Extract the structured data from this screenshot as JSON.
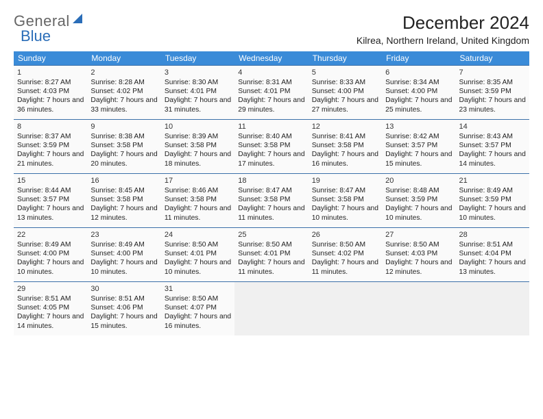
{
  "logo": {
    "word1": "General",
    "word2": "Blue"
  },
  "title": {
    "month": "December 2024",
    "location": "Kilrea, Northern Ireland, United Kingdom"
  },
  "colors": {
    "header_bg": "#3a8bd8",
    "header_text": "#ffffff",
    "week_border": "#3a6fa8",
    "day_bg": "#fafafa",
    "empty_bg": "#f0f0f0",
    "text": "#222222",
    "logo_gray": "#666666",
    "logo_blue": "#2a6db8"
  },
  "dow": [
    "Sunday",
    "Monday",
    "Tuesday",
    "Wednesday",
    "Thursday",
    "Friday",
    "Saturday"
  ],
  "weeks": [
    [
      {
        "n": "1",
        "sr": "8:27 AM",
        "ss": "4:03 PM",
        "dl": "7 hours and 36 minutes."
      },
      {
        "n": "2",
        "sr": "8:28 AM",
        "ss": "4:02 PM",
        "dl": "7 hours and 33 minutes."
      },
      {
        "n": "3",
        "sr": "8:30 AM",
        "ss": "4:01 PM",
        "dl": "7 hours and 31 minutes."
      },
      {
        "n": "4",
        "sr": "8:31 AM",
        "ss": "4:01 PM",
        "dl": "7 hours and 29 minutes."
      },
      {
        "n": "5",
        "sr": "8:33 AM",
        "ss": "4:00 PM",
        "dl": "7 hours and 27 minutes."
      },
      {
        "n": "6",
        "sr": "8:34 AM",
        "ss": "4:00 PM",
        "dl": "7 hours and 25 minutes."
      },
      {
        "n": "7",
        "sr": "8:35 AM",
        "ss": "3:59 PM",
        "dl": "7 hours and 23 minutes."
      }
    ],
    [
      {
        "n": "8",
        "sr": "8:37 AM",
        "ss": "3:59 PM",
        "dl": "7 hours and 21 minutes."
      },
      {
        "n": "9",
        "sr": "8:38 AM",
        "ss": "3:58 PM",
        "dl": "7 hours and 20 minutes."
      },
      {
        "n": "10",
        "sr": "8:39 AM",
        "ss": "3:58 PM",
        "dl": "7 hours and 18 minutes."
      },
      {
        "n": "11",
        "sr": "8:40 AM",
        "ss": "3:58 PM",
        "dl": "7 hours and 17 minutes."
      },
      {
        "n": "12",
        "sr": "8:41 AM",
        "ss": "3:58 PM",
        "dl": "7 hours and 16 minutes."
      },
      {
        "n": "13",
        "sr": "8:42 AM",
        "ss": "3:57 PM",
        "dl": "7 hours and 15 minutes."
      },
      {
        "n": "14",
        "sr": "8:43 AM",
        "ss": "3:57 PM",
        "dl": "7 hours and 14 minutes."
      }
    ],
    [
      {
        "n": "15",
        "sr": "8:44 AM",
        "ss": "3:57 PM",
        "dl": "7 hours and 13 minutes."
      },
      {
        "n": "16",
        "sr": "8:45 AM",
        "ss": "3:58 PM",
        "dl": "7 hours and 12 minutes."
      },
      {
        "n": "17",
        "sr": "8:46 AM",
        "ss": "3:58 PM",
        "dl": "7 hours and 11 minutes."
      },
      {
        "n": "18",
        "sr": "8:47 AM",
        "ss": "3:58 PM",
        "dl": "7 hours and 11 minutes."
      },
      {
        "n": "19",
        "sr": "8:47 AM",
        "ss": "3:58 PM",
        "dl": "7 hours and 10 minutes."
      },
      {
        "n": "20",
        "sr": "8:48 AM",
        "ss": "3:59 PM",
        "dl": "7 hours and 10 minutes."
      },
      {
        "n": "21",
        "sr": "8:49 AM",
        "ss": "3:59 PM",
        "dl": "7 hours and 10 minutes."
      }
    ],
    [
      {
        "n": "22",
        "sr": "8:49 AM",
        "ss": "4:00 PM",
        "dl": "7 hours and 10 minutes."
      },
      {
        "n": "23",
        "sr": "8:49 AM",
        "ss": "4:00 PM",
        "dl": "7 hours and 10 minutes."
      },
      {
        "n": "24",
        "sr": "8:50 AM",
        "ss": "4:01 PM",
        "dl": "7 hours and 10 minutes."
      },
      {
        "n": "25",
        "sr": "8:50 AM",
        "ss": "4:01 PM",
        "dl": "7 hours and 11 minutes."
      },
      {
        "n": "26",
        "sr": "8:50 AM",
        "ss": "4:02 PM",
        "dl": "7 hours and 11 minutes."
      },
      {
        "n": "27",
        "sr": "8:50 AM",
        "ss": "4:03 PM",
        "dl": "7 hours and 12 minutes."
      },
      {
        "n": "28",
        "sr": "8:51 AM",
        "ss": "4:04 PM",
        "dl": "7 hours and 13 minutes."
      }
    ],
    [
      {
        "n": "29",
        "sr": "8:51 AM",
        "ss": "4:05 PM",
        "dl": "7 hours and 14 minutes."
      },
      {
        "n": "30",
        "sr": "8:51 AM",
        "ss": "4:06 PM",
        "dl": "7 hours and 15 minutes."
      },
      {
        "n": "31",
        "sr": "8:50 AM",
        "ss": "4:07 PM",
        "dl": "7 hours and 16 minutes."
      },
      null,
      null,
      null,
      null
    ]
  ],
  "labels": {
    "sunrise": "Sunrise: ",
    "sunset": "Sunset: ",
    "daylight": "Daylight: "
  }
}
